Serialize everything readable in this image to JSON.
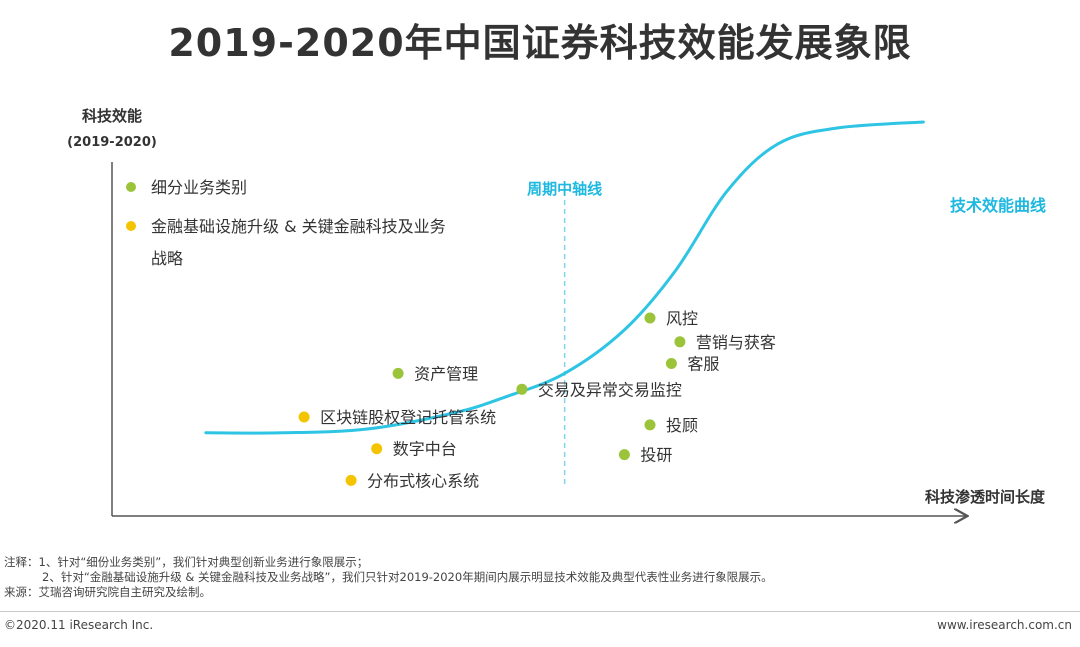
{
  "title": "2019-2020年中国证券科技效能发展象限",
  "colors": {
    "curve": "#2ec4e4",
    "midline": "#7fd6ec",
    "green": "#9bc43a",
    "yellow": "#f5c400",
    "axis": "#555555",
    "curve_label": "#1fb8e0"
  },
  "chart_data": {
    "type": "scatter",
    "title": "2019-2020年中国证券科技效能发展象限",
    "ylabel": "科技效能",
    "ylabel_sub": "(2019-2020)",
    "xlabel": "科技渗透时间长度",
    "xlim": [
      0,
      100
    ],
    "ylim": [
      0,
      100
    ],
    "legend": [
      {
        "label": "细分业务类别",
        "color": "#9bc43a"
      },
      {
        "label": "金融基础设施升级 & 关键金融科技及业务",
        "label_line2": "战略",
        "color": "#f5c400"
      }
    ],
    "midline": {
      "label": "周期中轴线",
      "x": 53
    },
    "curve": {
      "label": "技术效能曲线",
      "x": [
        11,
        20,
        30,
        40,
        46,
        53,
        60,
        66,
        72,
        78,
        85,
        95
      ],
      "y": [
        21,
        21,
        22,
        26,
        30,
        36,
        47,
        62,
        82,
        94,
        98,
        99.5
      ]
    },
    "points": [
      {
        "label": "资产管理",
        "x": 33.5,
        "y": 36,
        "color": "#9bc43a"
      },
      {
        "label": "区块链股权登记托管系统",
        "x": 22.5,
        "y": 25,
        "color": "#f5c400"
      },
      {
        "label": "数字中台",
        "x": 31,
        "y": 17,
        "color": "#f5c400"
      },
      {
        "label": "分布式核心系统",
        "x": 28,
        "y": 9,
        "color": "#f5c400"
      },
      {
        "label": "交易及异常交易监控",
        "x": 48,
        "y": 32,
        "color": "#9bc43a"
      },
      {
        "label": "风控",
        "x": 63,
        "y": 50,
        "color": "#9bc43a"
      },
      {
        "label": "营销与获客",
        "x": 66.5,
        "y": 44,
        "color": "#9bc43a"
      },
      {
        "label": "客服",
        "x": 65.5,
        "y": 38.5,
        "color": "#9bc43a"
      },
      {
        "label": "投顾",
        "x": 63,
        "y": 23,
        "color": "#9bc43a"
      },
      {
        "label": "投研",
        "x": 60,
        "y": 15.5,
        "color": "#9bc43a"
      }
    ]
  },
  "notes": {
    "line1": "注释：1、针对“细份业务类别”，我们针对典型创新业务进行象限展示；",
    "line2": "2、针对“金融基础设施升级 & 关键金融科技及业务战略”，我们只针对2019-2020年期间内展示明显技术效能及典型代表性业务进行象限展示。",
    "line3": "来源：艾瑞咨询研究院自主研究及绘制。"
  },
  "footer": {
    "copyright": "©2020.11 iResearch Inc.",
    "site": "www.iresearch.com.cn"
  }
}
